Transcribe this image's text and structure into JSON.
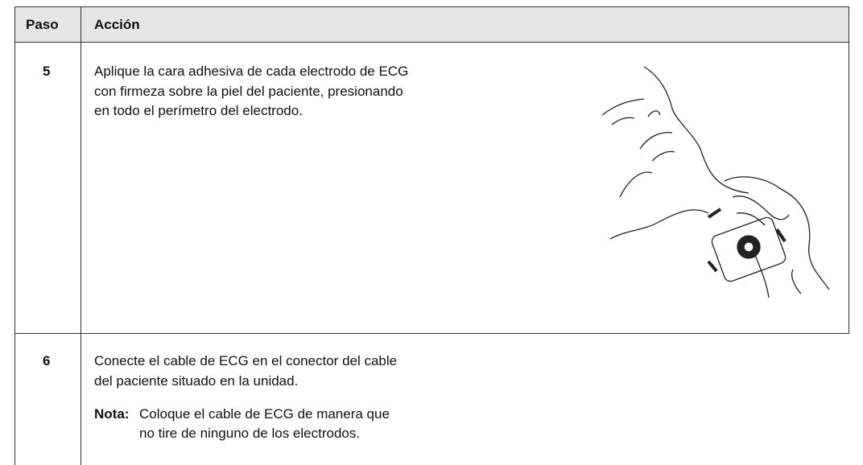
{
  "table": {
    "header": [
      "Paso",
      "Acción"
    ],
    "rows": [
      {
        "step": "5",
        "lines": [
          "Aplique la cara adhesiva de cada electrodo de ECG",
          "con firmeza sobre la piel del paciente, presionando",
          "en todo el perímetro del electrodo."
        ]
      },
      {
        "step": "6",
        "lines": [
          "Conecte el cable de ECG en el conector del cable",
          "del paciente situado en la unidad."
        ],
        "note": {
          "label": "Nota:",
          "lines": [
            "Coloque el cable de ECG de manera que",
            "no tire de ninguno de los electrodos."
          ]
        }
      }
    ]
  }
}
